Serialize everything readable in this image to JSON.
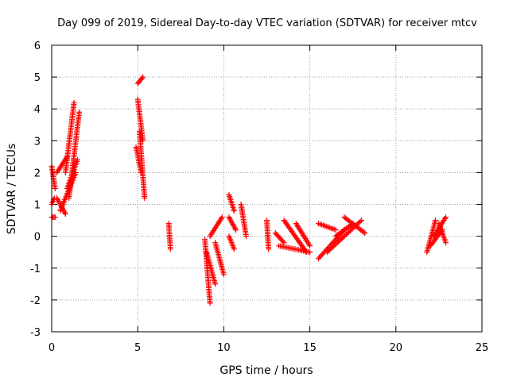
{
  "chart_data": {
    "type": "scatter",
    "title": "Day 099 of 2019, Sidereal Day-to-day VTEC variation (SDTVAR) for receiver mtcv",
    "xlabel": "GPS time / hours",
    "ylabel": "SDTVAR / TECUs",
    "xlim": [
      0,
      25
    ],
    "ylim": [
      -3,
      6
    ],
    "grid": true,
    "marker": "+",
    "marker_color": "#ff0000",
    "x_ticks": [
      0,
      5,
      10,
      15,
      20,
      25
    ],
    "x_tick_labels": [
      "0",
      "5",
      "10",
      "15",
      "20",
      "25"
    ],
    "y_ticks": [
      -3,
      -2,
      -1,
      0,
      1,
      2,
      3,
      4,
      5,
      6
    ],
    "y_tick_labels": [
      "-3",
      "-2",
      "-1",
      "0",
      "1",
      "2",
      "3",
      "4",
      "5",
      "6"
    ],
    "segments": [
      {
        "x": [
          0.0,
          0.2
        ],
        "y": [
          2.2,
          1.5
        ]
      },
      {
        "x": [
          0.0,
          0.15
        ],
        "y": [
          1.0,
          1.2
        ]
      },
      {
        "x": [
          0.0,
          0.2
        ],
        "y": [
          0.6,
          0.6
        ]
      },
      {
        "x": [
          0.3,
          0.9
        ],
        "y": [
          2.0,
          2.5
        ]
      },
      {
        "x": [
          0.3,
          0.8
        ],
        "y": [
          1.2,
          0.7
        ]
      },
      {
        "x": [
          0.5,
          1.4
        ],
        "y": [
          0.8,
          2.0
        ]
      },
      {
        "x": [
          0.8,
          1.3
        ],
        "y": [
          2.0,
          4.2
        ]
      },
      {
        "x": [
          1.0,
          1.6
        ],
        "y": [
          1.2,
          3.9
        ]
      },
      {
        "x": [
          0.9,
          1.5
        ],
        "y": [
          1.5,
          2.4
        ]
      },
      {
        "x": [
          5.0,
          5.3
        ],
        "y": [
          4.8,
          5.0
        ]
      },
      {
        "x": [
          5.0,
          5.3
        ],
        "y": [
          4.3,
          3.0
        ]
      },
      {
        "x": [
          5.1,
          5.4
        ],
        "y": [
          3.3,
          1.2
        ]
      },
      {
        "x": [
          4.9,
          5.2
        ],
        "y": [
          2.8,
          2.0
        ]
      },
      {
        "x": [
          6.8,
          6.9
        ],
        "y": [
          0.4,
          -0.4
        ]
      },
      {
        "x": [
          8.9,
          9.2
        ],
        "y": [
          -0.1,
          -2.1
        ]
      },
      {
        "x": [
          9.0,
          9.5
        ],
        "y": [
          -0.5,
          -1.5
        ]
      },
      {
        "x": [
          9.2,
          9.9
        ],
        "y": [
          0.0,
          0.6
        ]
      },
      {
        "x": [
          9.5,
          10.0
        ],
        "y": [
          -0.2,
          -1.2
        ]
      },
      {
        "x": [
          10.3,
          10.6
        ],
        "y": [
          1.3,
          0.8
        ]
      },
      {
        "x": [
          10.3,
          10.7
        ],
        "y": [
          0.6,
          0.2
        ]
      },
      {
        "x": [
          10.3,
          10.6
        ],
        "y": [
          0.0,
          -0.4
        ]
      },
      {
        "x": [
          11.0,
          11.3
        ],
        "y": [
          1.0,
          0.0
        ]
      },
      {
        "x": [
          12.5,
          12.6
        ],
        "y": [
          0.5,
          -0.4
        ]
      },
      {
        "x": [
          13.0,
          13.5
        ],
        "y": [
          0.1,
          -0.2
        ]
      },
      {
        "x": [
          13.2,
          15.0
        ],
        "y": [
          -0.3,
          -0.5
        ]
      },
      {
        "x": [
          13.5,
          14.8
        ],
        "y": [
          0.5,
          -0.5
        ]
      },
      {
        "x": [
          14.2,
          15.0
        ],
        "y": [
          0.4,
          -0.3
        ]
      },
      {
        "x": [
          15.5,
          16.5
        ],
        "y": [
          0.4,
          0.2
        ]
      },
      {
        "x": [
          15.5,
          17.0
        ],
        "y": [
          -0.7,
          0.2
        ]
      },
      {
        "x": [
          16.0,
          18.0
        ],
        "y": [
          -0.5,
          0.5
        ]
      },
      {
        "x": [
          16.5,
          17.5
        ],
        "y": [
          0.0,
          0.4
        ]
      },
      {
        "x": [
          17.0,
          18.2
        ],
        "y": [
          0.6,
          0.1
        ]
      },
      {
        "x": [
          21.8,
          22.3
        ],
        "y": [
          -0.5,
          0.5
        ]
      },
      {
        "x": [
          22.0,
          22.7
        ],
        "y": [
          -0.3,
          0.2
        ]
      },
      {
        "x": [
          22.2,
          22.9
        ],
        "y": [
          0.0,
          0.6
        ]
      },
      {
        "x": [
          22.5,
          22.9
        ],
        "y": [
          0.4,
          -0.2
        ]
      }
    ]
  }
}
